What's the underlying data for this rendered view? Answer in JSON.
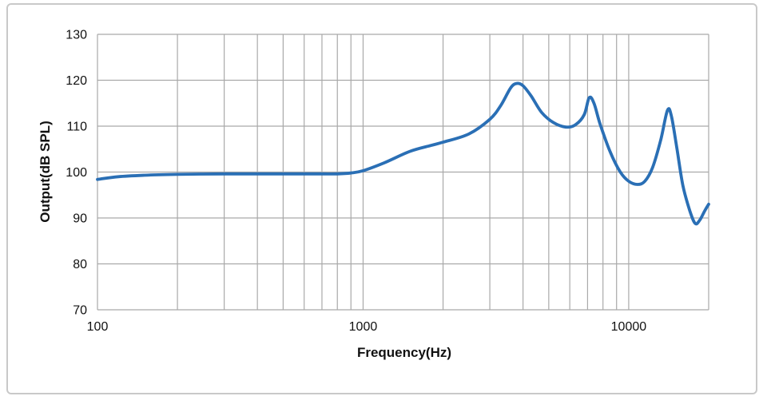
{
  "chart_data": {
    "type": "line",
    "title": "",
    "xlabel": "Frequency(Hz)",
    "ylabel": "Output(dB SPL)",
    "x_scale": "log",
    "xlim": [
      100,
      20000
    ],
    "ylim": [
      70,
      130
    ],
    "y_ticks": [
      70,
      80,
      90,
      100,
      110,
      120,
      130
    ],
    "x_major_ticks": [
      100,
      1000,
      10000
    ],
    "x_tick_labels": [
      "100",
      "1000",
      "10000"
    ],
    "grid": true,
    "legend": "none",
    "line_color": "#2a6fb5",
    "grid_color": "#a9a9a9",
    "tick_label_color": "#111111",
    "series": [
      {
        "name": "Output",
        "points": [
          [
            100,
            98.4
          ],
          [
            120,
            99.0
          ],
          [
            150,
            99.3
          ],
          [
            200,
            99.5
          ],
          [
            300,
            99.6
          ],
          [
            400,
            99.6
          ],
          [
            500,
            99.6
          ],
          [
            600,
            99.6
          ],
          [
            700,
            99.6
          ],
          [
            800,
            99.6
          ],
          [
            900,
            99.8
          ],
          [
            1000,
            100.3
          ],
          [
            1200,
            102.0
          ],
          [
            1500,
            104.5
          ],
          [
            1800,
            105.8
          ],
          [
            2000,
            106.5
          ],
          [
            2500,
            108.3
          ],
          [
            3000,
            111.5
          ],
          [
            3300,
            114.5
          ],
          [
            3600,
            118.4
          ],
          [
            3800,
            119.3
          ],
          [
            4000,
            118.8
          ],
          [
            4300,
            116.5
          ],
          [
            4700,
            113.0
          ],
          [
            5200,
            110.8
          ],
          [
            5800,
            109.8
          ],
          [
            6300,
            110.3
          ],
          [
            6800,
            112.5
          ],
          [
            7100,
            116.2
          ],
          [
            7400,
            115.0
          ],
          [
            7800,
            110.5
          ],
          [
            8500,
            104.5
          ],
          [
            9300,
            100.0
          ],
          [
            10000,
            98.0
          ],
          [
            10800,
            97.3
          ],
          [
            11500,
            98.0
          ],
          [
            12300,
            101.0
          ],
          [
            13200,
            107.0
          ],
          [
            14000,
            113.5
          ],
          [
            14500,
            112.0
          ],
          [
            15200,
            105.0
          ],
          [
            16000,
            97.0
          ],
          [
            17000,
            91.5
          ],
          [
            17800,
            88.8
          ],
          [
            18500,
            89.5
          ],
          [
            19300,
            91.5
          ],
          [
            20000,
            93.0
          ]
        ]
      }
    ]
  }
}
